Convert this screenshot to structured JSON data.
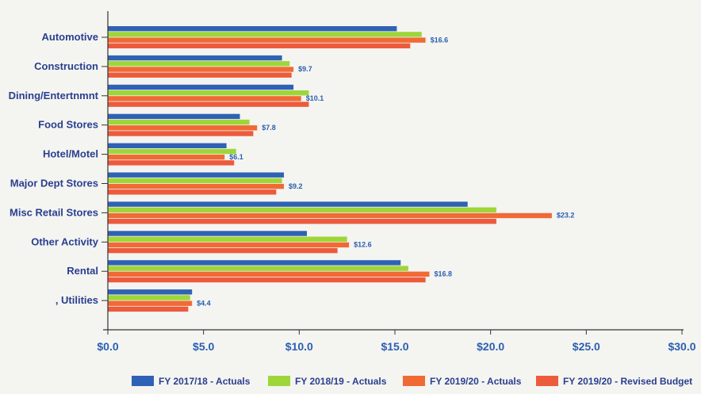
{
  "chart_data": {
    "type": "bar",
    "orientation": "horizontal",
    "title": "",
    "xlabel": "",
    "ylabel": "",
    "xlim": [
      0,
      30
    ],
    "x_ticks": [
      "$0.0",
      "$5.0",
      "$10.0",
      "$15.0",
      "$20.0",
      "$25.0",
      "$30.0"
    ],
    "x_tick_values": [
      0,
      5,
      10,
      15,
      20,
      25,
      30
    ],
    "grid": false,
    "legend_position": "bottom",
    "categories": [
      "Automotive",
      "Construction",
      "Dining/Entertnmnt",
      "Food Stores",
      "Hotel/Motel",
      "Major Dept Stores",
      "Misc Retail Stores",
      "Other Activity",
      "Rental",
      ", Utilities"
    ],
    "series": [
      {
        "name": "FY 2017/18 - Actuals",
        "color": "#2f62b4",
        "values": [
          15.1,
          9.1,
          9.7,
          6.9,
          6.2,
          9.2,
          18.8,
          10.4,
          15.3,
          4.4
        ]
      },
      {
        "name": "FY 2018/19 - Actuals",
        "color": "#9ed63a",
        "values": [
          16.4,
          9.5,
          10.5,
          7.4,
          6.7,
          9.1,
          20.3,
          12.5,
          15.7,
          4.3
        ]
      },
      {
        "name": "FY 2019/20 - Actuals",
        "color": "#f06a35",
        "values": [
          16.6,
          9.7,
          10.1,
          7.8,
          6.1,
          9.2,
          23.2,
          12.6,
          16.8,
          4.4
        ]
      },
      {
        "name": "FY 2019/20 - Revised Budget",
        "color": "#ec5b3c",
        "values": [
          15.8,
          9.6,
          10.5,
          7.6,
          6.6,
          8.8,
          20.3,
          12.0,
          16.6,
          4.2
        ]
      }
    ],
    "data_labels": [
      "$16.6",
      "$9.7",
      "$10.1",
      "$7.8",
      "$6.1",
      "$9.2",
      "$23.2",
      "$12.6",
      "$16.8",
      "$4.4"
    ],
    "data_label_series": 2
  }
}
